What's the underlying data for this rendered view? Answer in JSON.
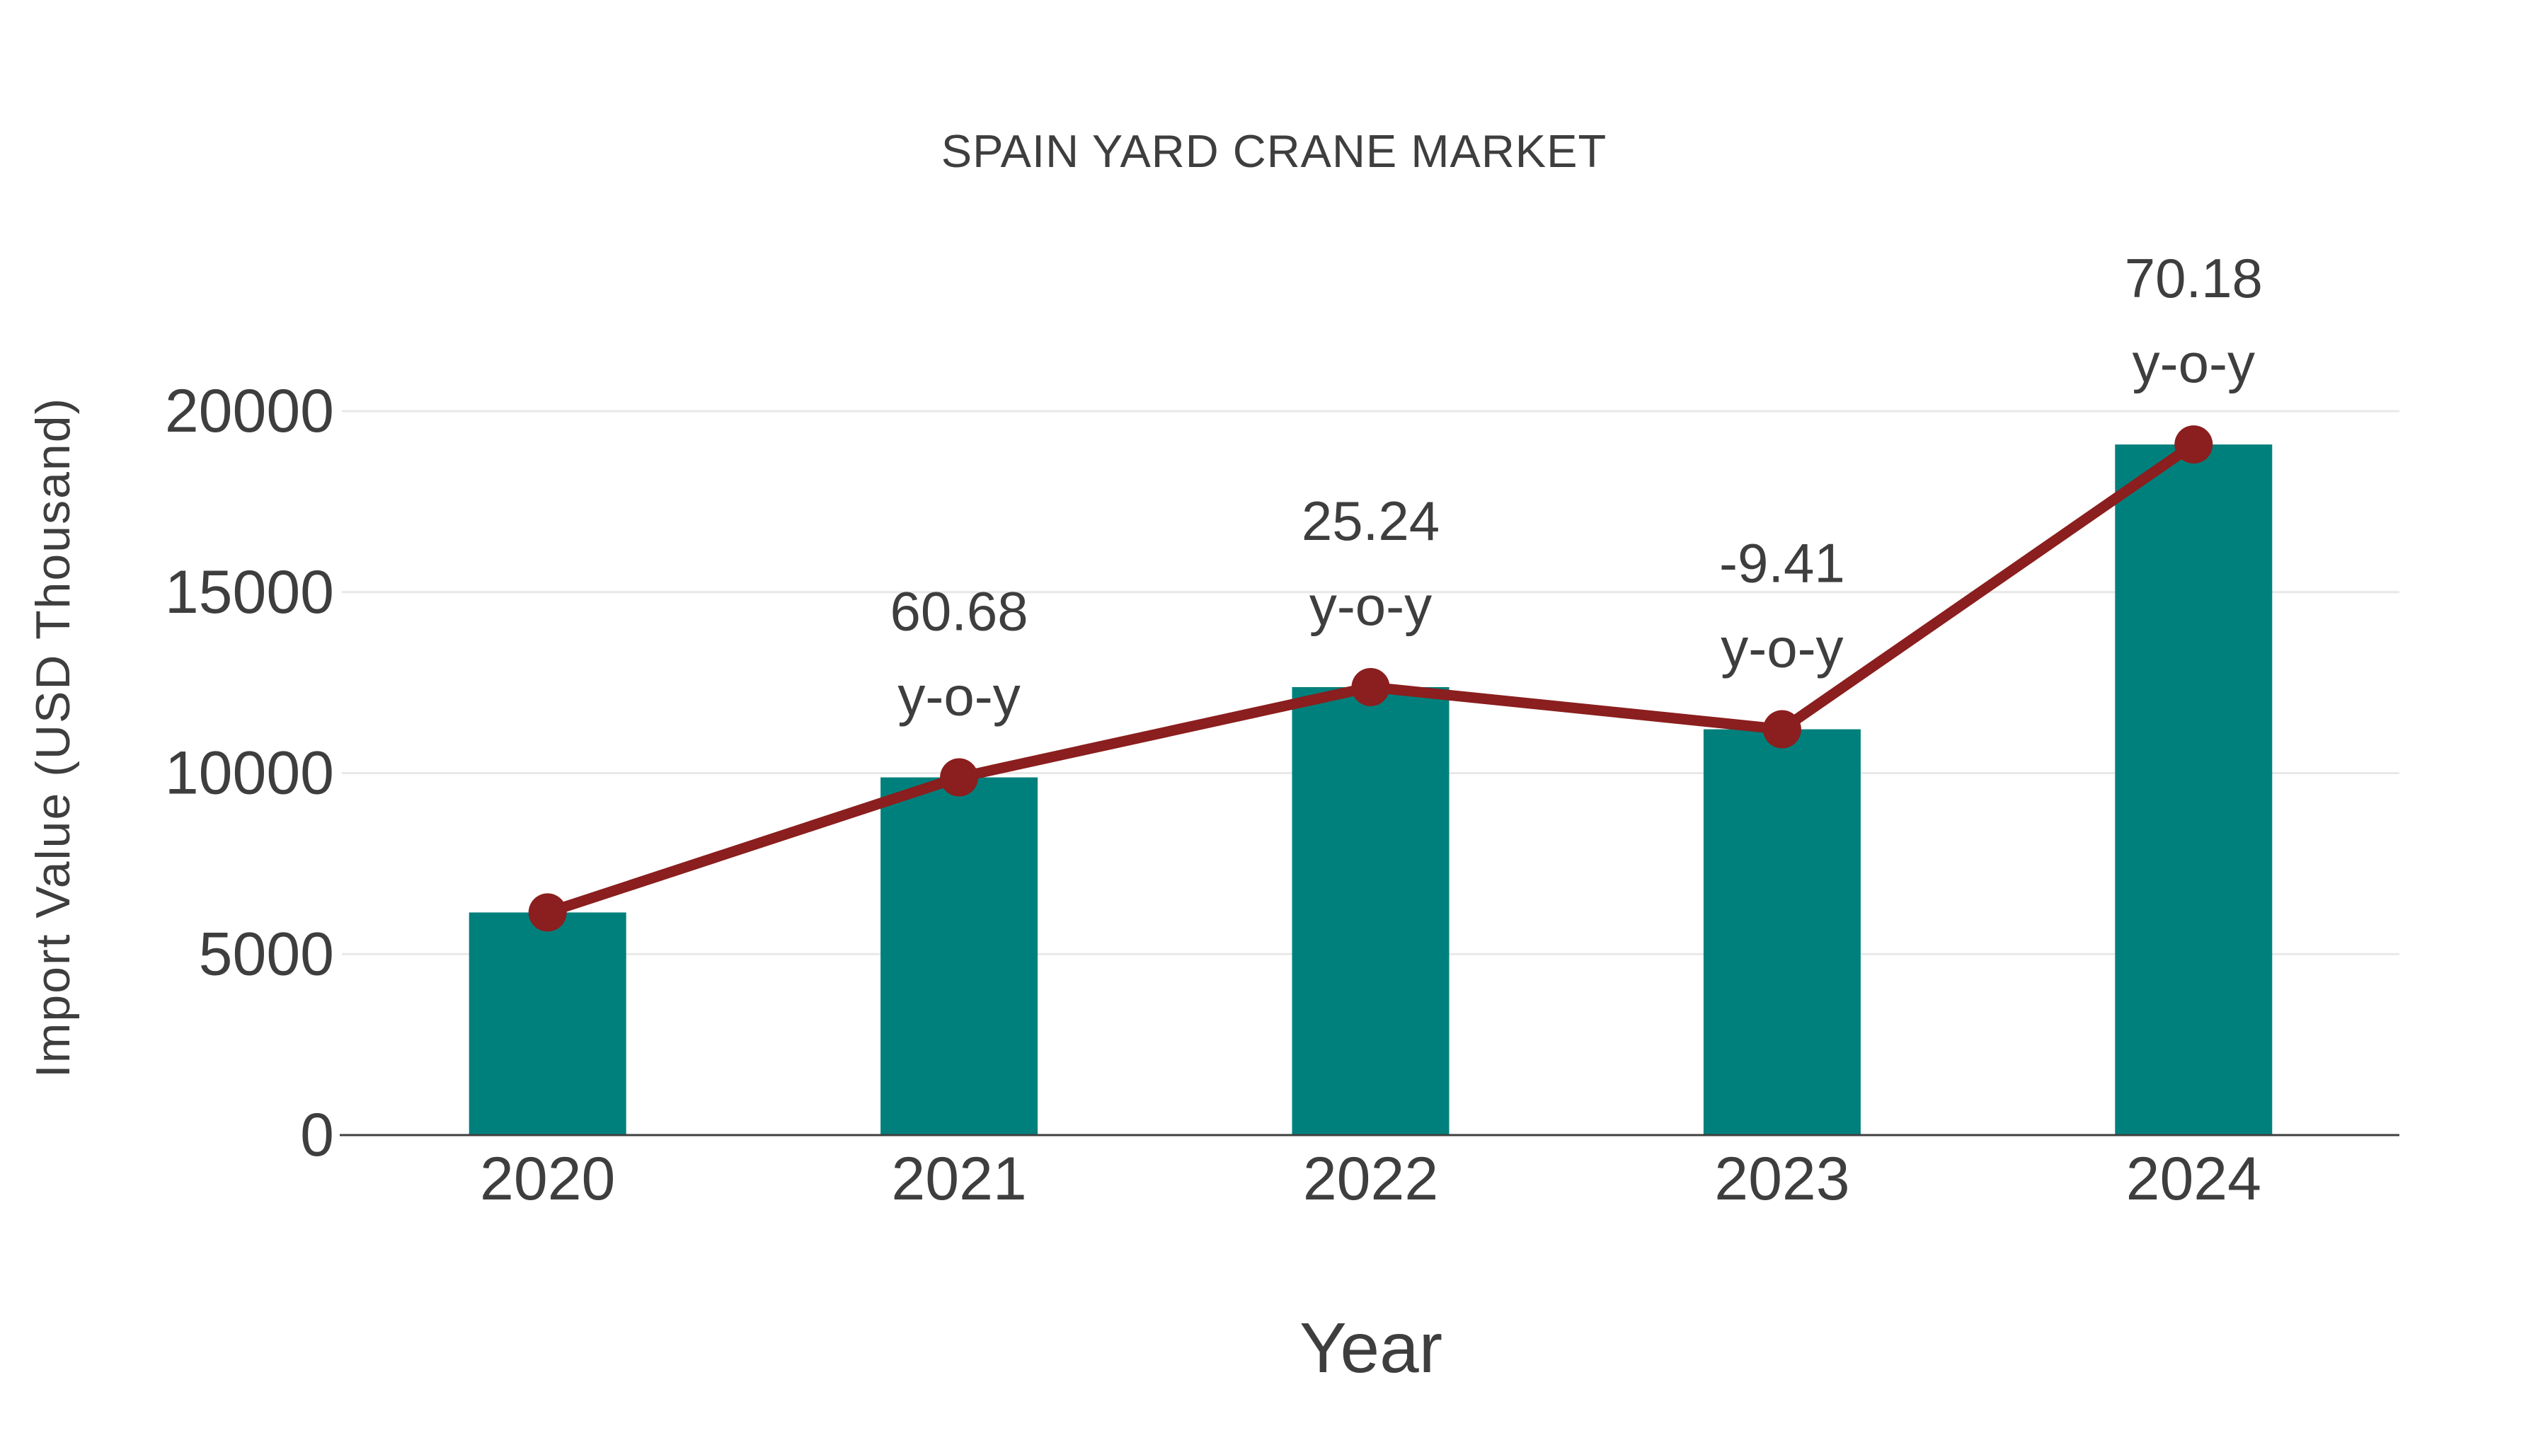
{
  "chart_data": {
    "type": "bar",
    "title": "SPAIN YARD CRANE MARKET",
    "xlabel": "Year",
    "ylabel": "Import Value (USD Thousand)",
    "categories": [
      "2020",
      "2021",
      "2022",
      "2023",
      "2024"
    ],
    "series": [
      {
        "name": "Import Value (USD Thousand)",
        "type": "bar",
        "color": "#00807C",
        "values": [
          6150,
          9882,
          12376,
          11211,
          19079
        ]
      },
      {
        "name": "y-o-y growth (%)",
        "type": "line",
        "color": "#8B1E1E",
        "values": [
          null,
          60.68,
          25.24,
          -9.41,
          70.18
        ],
        "plotted_at_bar_tops": true
      }
    ],
    "point_labels": [
      {
        "category": "2021",
        "line1": "60.68",
        "line2": "y-o-y"
      },
      {
        "category": "2022",
        "line1": "25.24",
        "line2": "y-o-y"
      },
      {
        "category": "2023",
        "line1": "-9.41",
        "line2": "y-o-y"
      },
      {
        "category": "2024",
        "line1": "70.18",
        "line2": "y-o-y"
      }
    ],
    "yticks": [
      0,
      5000,
      10000,
      15000,
      20000
    ],
    "ylim": [
      0,
      21500
    ],
    "grid": true,
    "legend_position": "none",
    "colors": {
      "text": "#3E3E3E",
      "gridline": "#E8E8E8",
      "axis_line": "#3F3F3F"
    }
  }
}
